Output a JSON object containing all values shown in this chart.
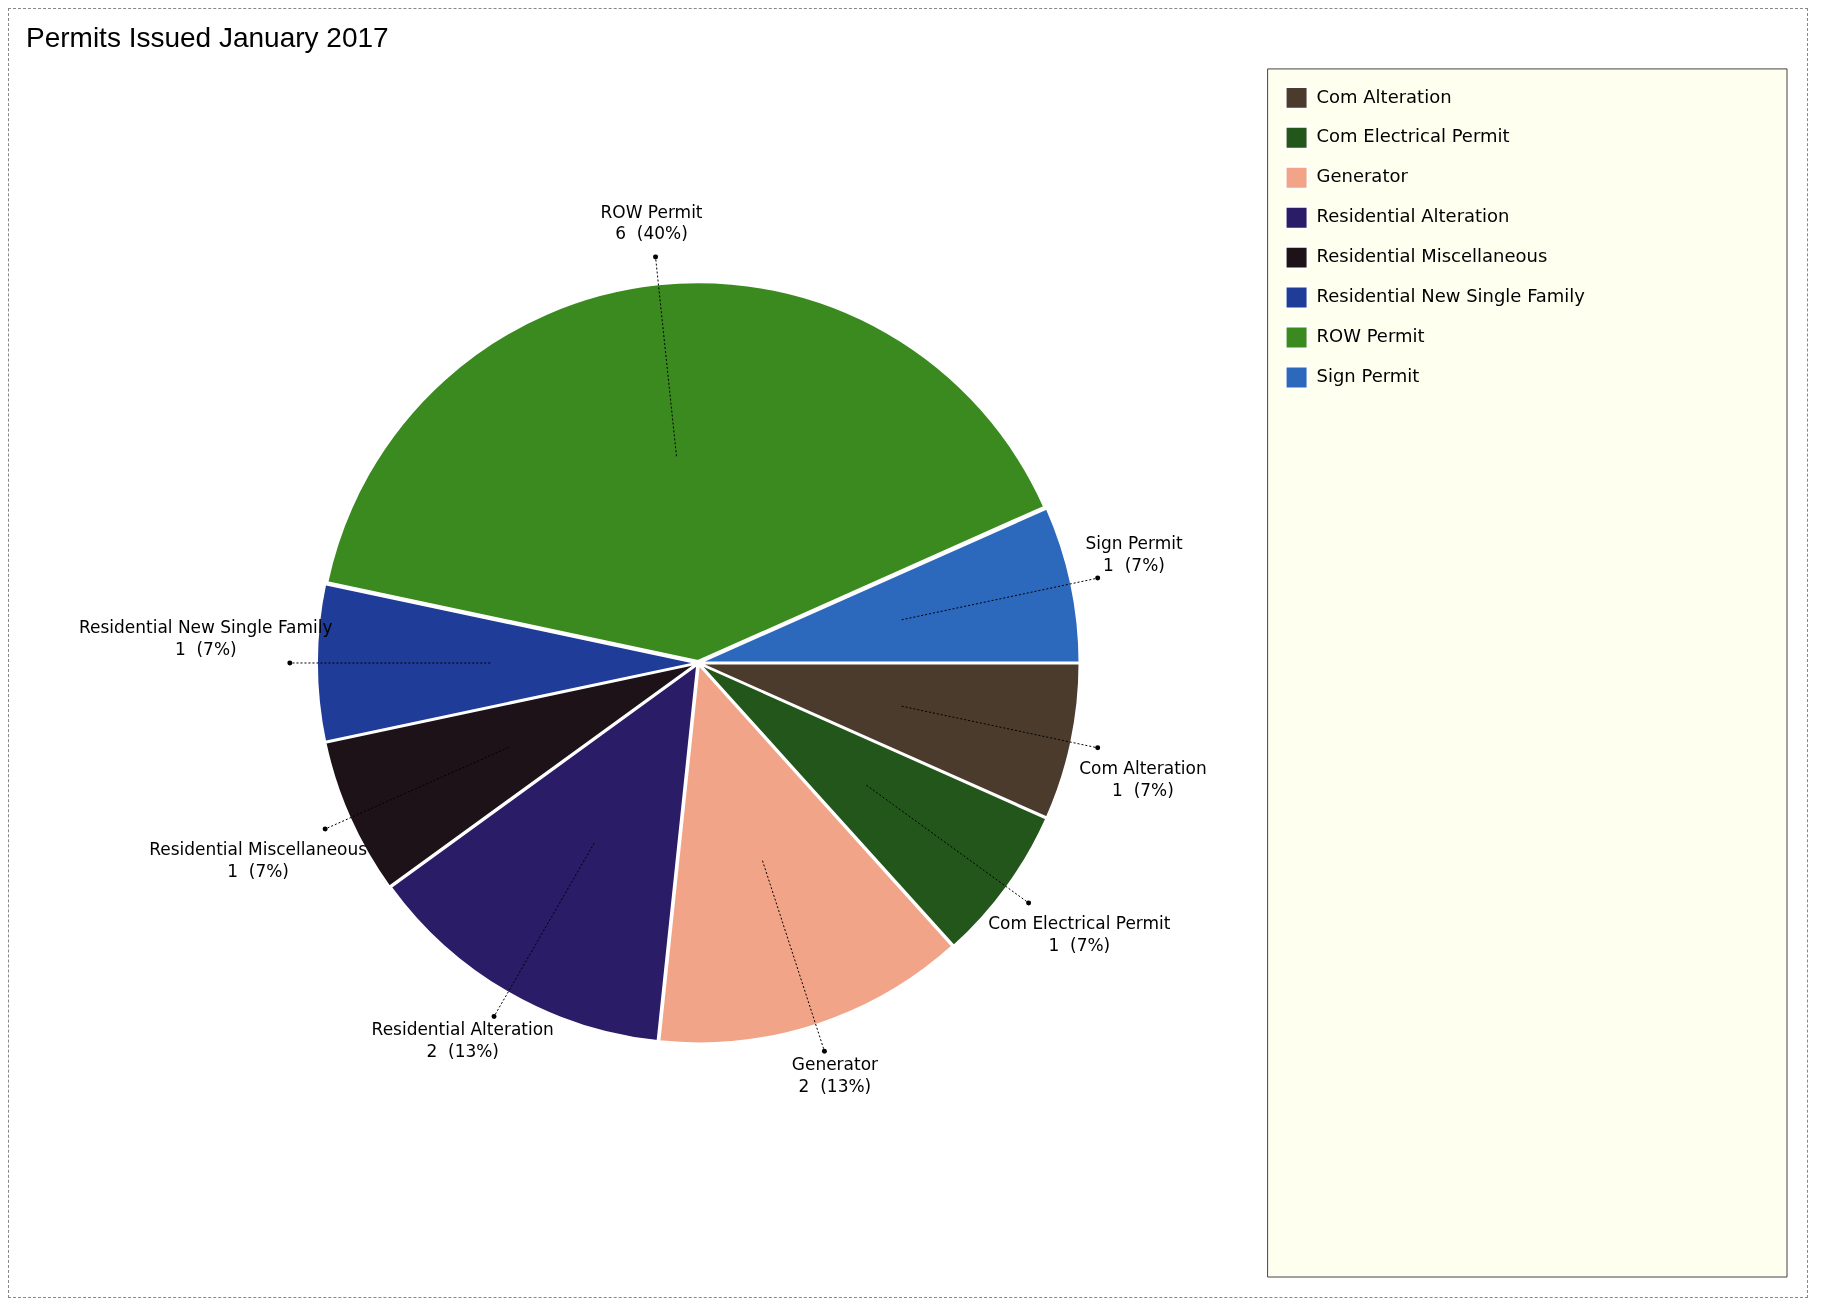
{
  "chart_data": {
    "type": "pie",
    "title": "Permits Issued January 2017",
    "categories": [
      "Com Alteration",
      "Com Electrical Permit",
      "Generator",
      "Residential Alteration",
      "Residential Miscellaneous",
      "Residential New Single Family",
      "ROW Permit",
      "Sign Permit"
    ],
    "values": [
      1,
      1,
      2,
      2,
      1,
      1,
      6,
      1
    ],
    "value_labels": [
      "1  (7%)",
      "1  (7%)",
      "2  (13%)",
      "2  (13%)",
      "1  (7%)",
      "1  (7%)",
      "6  (40%)",
      "1  (7%)"
    ],
    "colors": [
      "#4a3b2c",
      "#22561a",
      "#f2a488",
      "#2a1c66",
      "#1c1218",
      "#1e3c98",
      "#3a8a20",
      "#2c68bc"
    ],
    "legend": "right"
  }
}
